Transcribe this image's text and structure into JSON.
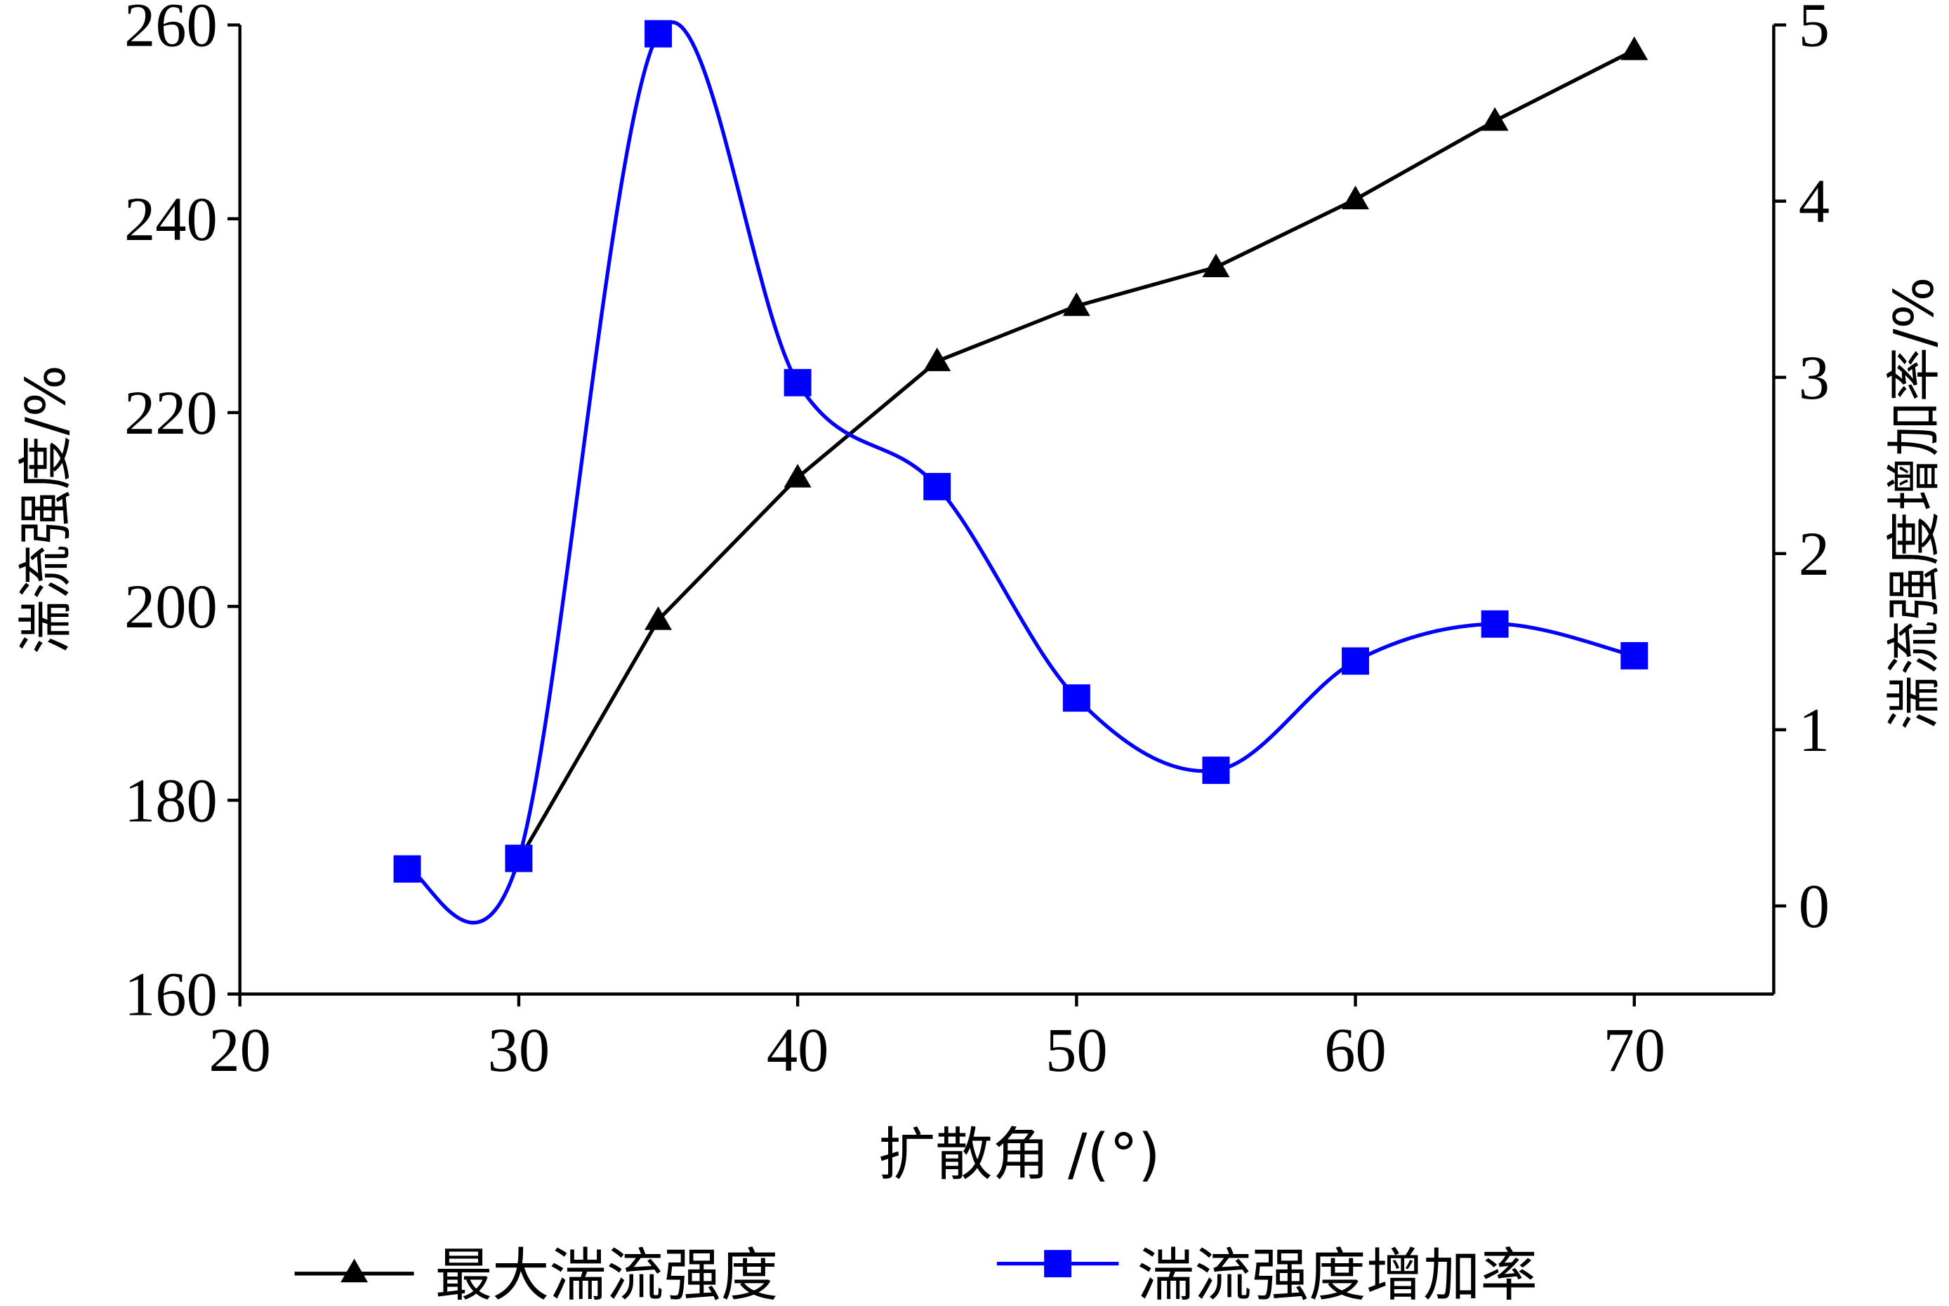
{
  "chart_data": {
    "type": "line",
    "xlabel": "扩散角 /(°)",
    "ylabel_left": "湍流强度/%",
    "ylabel_right": "湍流强度增加率/%",
    "xlim": [
      20,
      75
    ],
    "ylim_left": [
      160,
      260
    ],
    "ylim_right": [
      -0.5,
      5
    ],
    "x_ticks": [
      "20",
      "30",
      "40",
      "50",
      "60",
      "70"
    ],
    "x_tick_values": [
      20,
      30,
      40,
      50,
      60,
      70
    ],
    "y_left_ticks": [
      "160",
      "180",
      "200",
      "220",
      "240",
      "260"
    ],
    "y_left_tick_values": [
      160,
      180,
      200,
      220,
      240,
      260
    ],
    "y_right_ticks": [
      "0",
      "1",
      "2",
      "3",
      "4",
      "5"
    ],
    "y_right_tick_values": [
      0,
      1,
      2,
      3,
      4,
      5
    ],
    "grid": false,
    "legend_position": "bottom",
    "series": [
      {
        "name": "最大湍流强度",
        "axis": "left",
        "color": "#000000",
        "marker": "triangle",
        "smooth": false,
        "x": [
          30,
          35,
          40,
          45,
          50,
          55,
          60,
          65,
          70
        ],
        "y": [
          173.8,
          198.6,
          213.3,
          225.3,
          231.0,
          235.0,
          242.0,
          250.1,
          257.4
        ]
      },
      {
        "name": "湍流强度增加率",
        "axis": "right",
        "color": "#0000ff",
        "marker": "square",
        "smooth": true,
        "x": [
          26,
          30,
          35,
          40,
          45,
          50,
          55,
          60,
          65,
          70
        ],
        "y": [
          0.21,
          0.27,
          4.95,
          2.97,
          2.38,
          1.18,
          0.77,
          1.39,
          1.6,
          1.42
        ]
      }
    ]
  }
}
